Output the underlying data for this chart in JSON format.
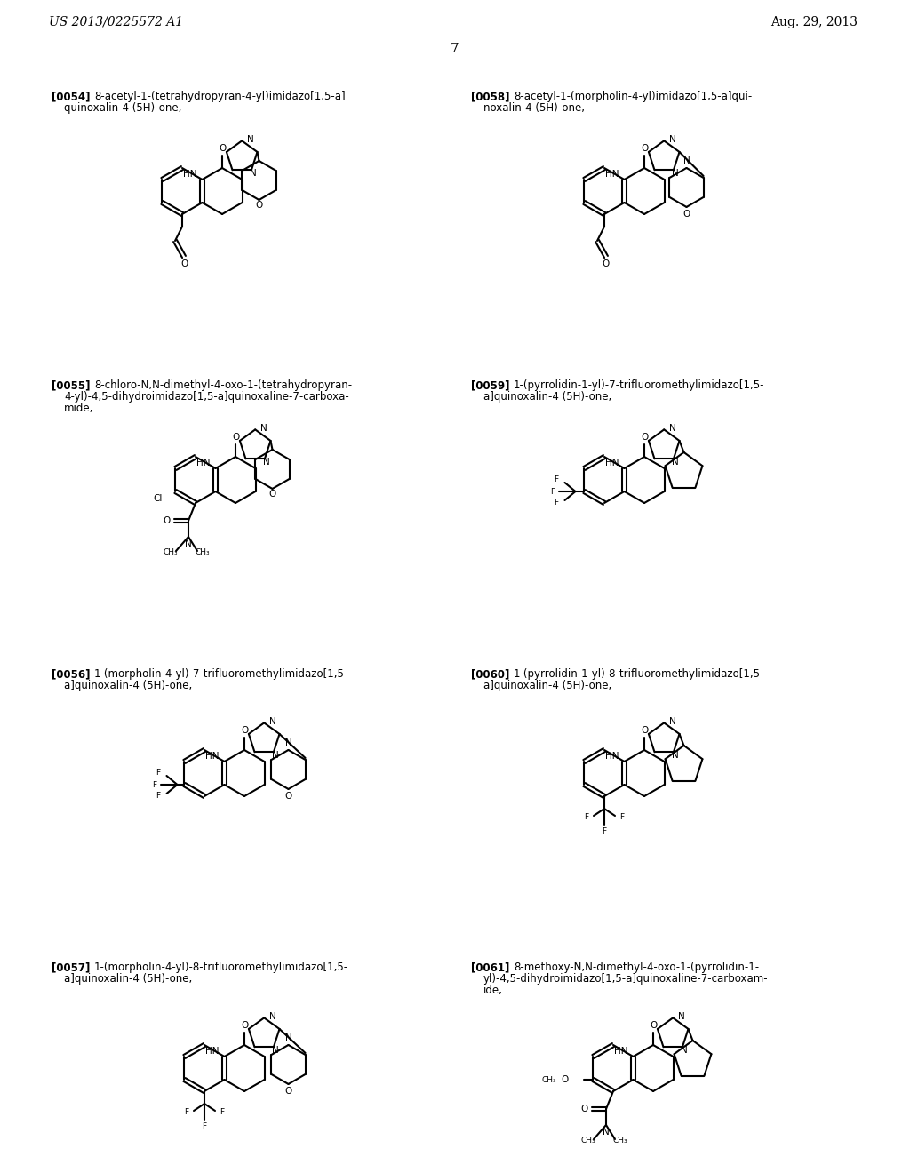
{
  "header_left": "US 2013/0225572 A1",
  "header_right": "Aug. 29, 2013",
  "page_number": "7",
  "bg": "#ffffff",
  "compounds": [
    {
      "id": "[0054]",
      "line1": "8-acetyl-1-(tetrahydropyran-4-yl)imidazo[1,5-a]",
      "line2": "quinoxalin-4 (5H)-one,",
      "col": 0,
      "row": 0
    },
    {
      "id": "[0058]",
      "line1": "8-acetyl-1-(morpholin-4-yl)imidazo[1,5-a]qui-",
      "line2": "noxalin-4 (5H)-one,",
      "col": 1,
      "row": 0
    },
    {
      "id": "[0055]",
      "line1": "8-chloro-N,N-dimethyl-4-oxo-1-(tetrahydropyran-",
      "line2": "4-yl)-4,5-dihydroimidazo[1,5-a]quinoxaline-7-carboxa-",
      "line3": "mide,",
      "col": 0,
      "row": 1
    },
    {
      "id": "[0059]",
      "line1": "1-(pyrrolidin-1-yl)-7-trifluoromethylimidazo[1,5-",
      "line2": "a]quinoxalin-4 (5H)-one,",
      "col": 1,
      "row": 1
    },
    {
      "id": "[0056]",
      "line1": "1-(morpholin-4-yl)-7-trifluoromethylimidazo[1,5-",
      "line2": "a]quinoxalin-4 (5H)-one,",
      "col": 0,
      "row": 2
    },
    {
      "id": "[0060]",
      "line1": "1-(pyrrolidin-1-yl)-8-trifluoromethylimidazo[1,5-",
      "line2": "a]quinoxalin-4 (5H)-one,",
      "col": 1,
      "row": 2
    },
    {
      "id": "[0057]",
      "line1": "1-(morpholin-4-yl)-8-trifluoromethylimidazo[1,5-",
      "line2": "a]quinoxalin-4 (5H)-one,",
      "col": 0,
      "row": 3
    },
    {
      "id": "[0061]",
      "line1": "8-methoxy-N,N-dimethyl-4-oxo-1-(pyrrolidin-1-",
      "line2": "yl)-4,5-dihydroimidazo[1,5-a]quinoxaline-7-carboxam-",
      "line3": "ide,",
      "col": 1,
      "row": 3
    }
  ]
}
